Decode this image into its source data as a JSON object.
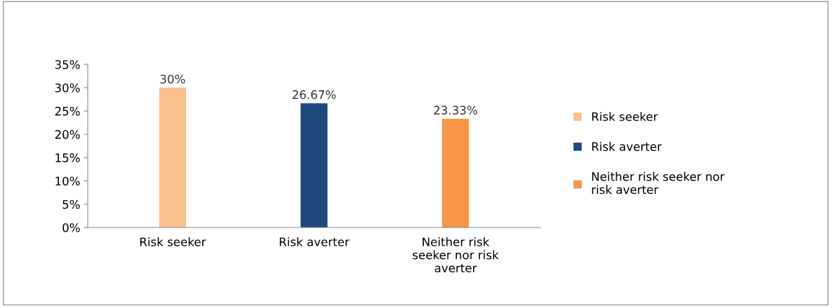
{
  "chart_data": {
    "type": "bar",
    "categories": [
      "Risk seeker",
      "Risk averter",
      "Neither risk seeker nor risk averter"
    ],
    "series": [
      {
        "name": "Risk seeker",
        "color": "#fac090",
        "values": [
          30,
          null,
          null
        ],
        "value_labels": [
          "30%",
          null,
          null
        ]
      },
      {
        "name": "Risk averter",
        "color": "#1f497d",
        "values": [
          null,
          26.67,
          null
        ],
        "value_labels": [
          null,
          "26.67%",
          null
        ]
      },
      {
        "name": "Neither risk seeker nor risk averter",
        "color": "#f79646",
        "values": [
          null,
          null,
          23.33
        ],
        "value_labels": [
          null,
          null,
          "23.33%"
        ]
      }
    ],
    "ylim": [
      0,
      35
    ],
    "yticks": [
      {
        "value": 0,
        "label": "0%"
      },
      {
        "value": 5,
        "label": "5%"
      },
      {
        "value": 10,
        "label": "10%"
      },
      {
        "value": 15,
        "label": "15%"
      },
      {
        "value": 20,
        "label": "20%"
      },
      {
        "value": 25,
        "label": "25%"
      },
      {
        "value": 30,
        "label": "30%"
      },
      {
        "value": 35,
        "label": "35%"
      }
    ],
    "legend": "right"
  }
}
